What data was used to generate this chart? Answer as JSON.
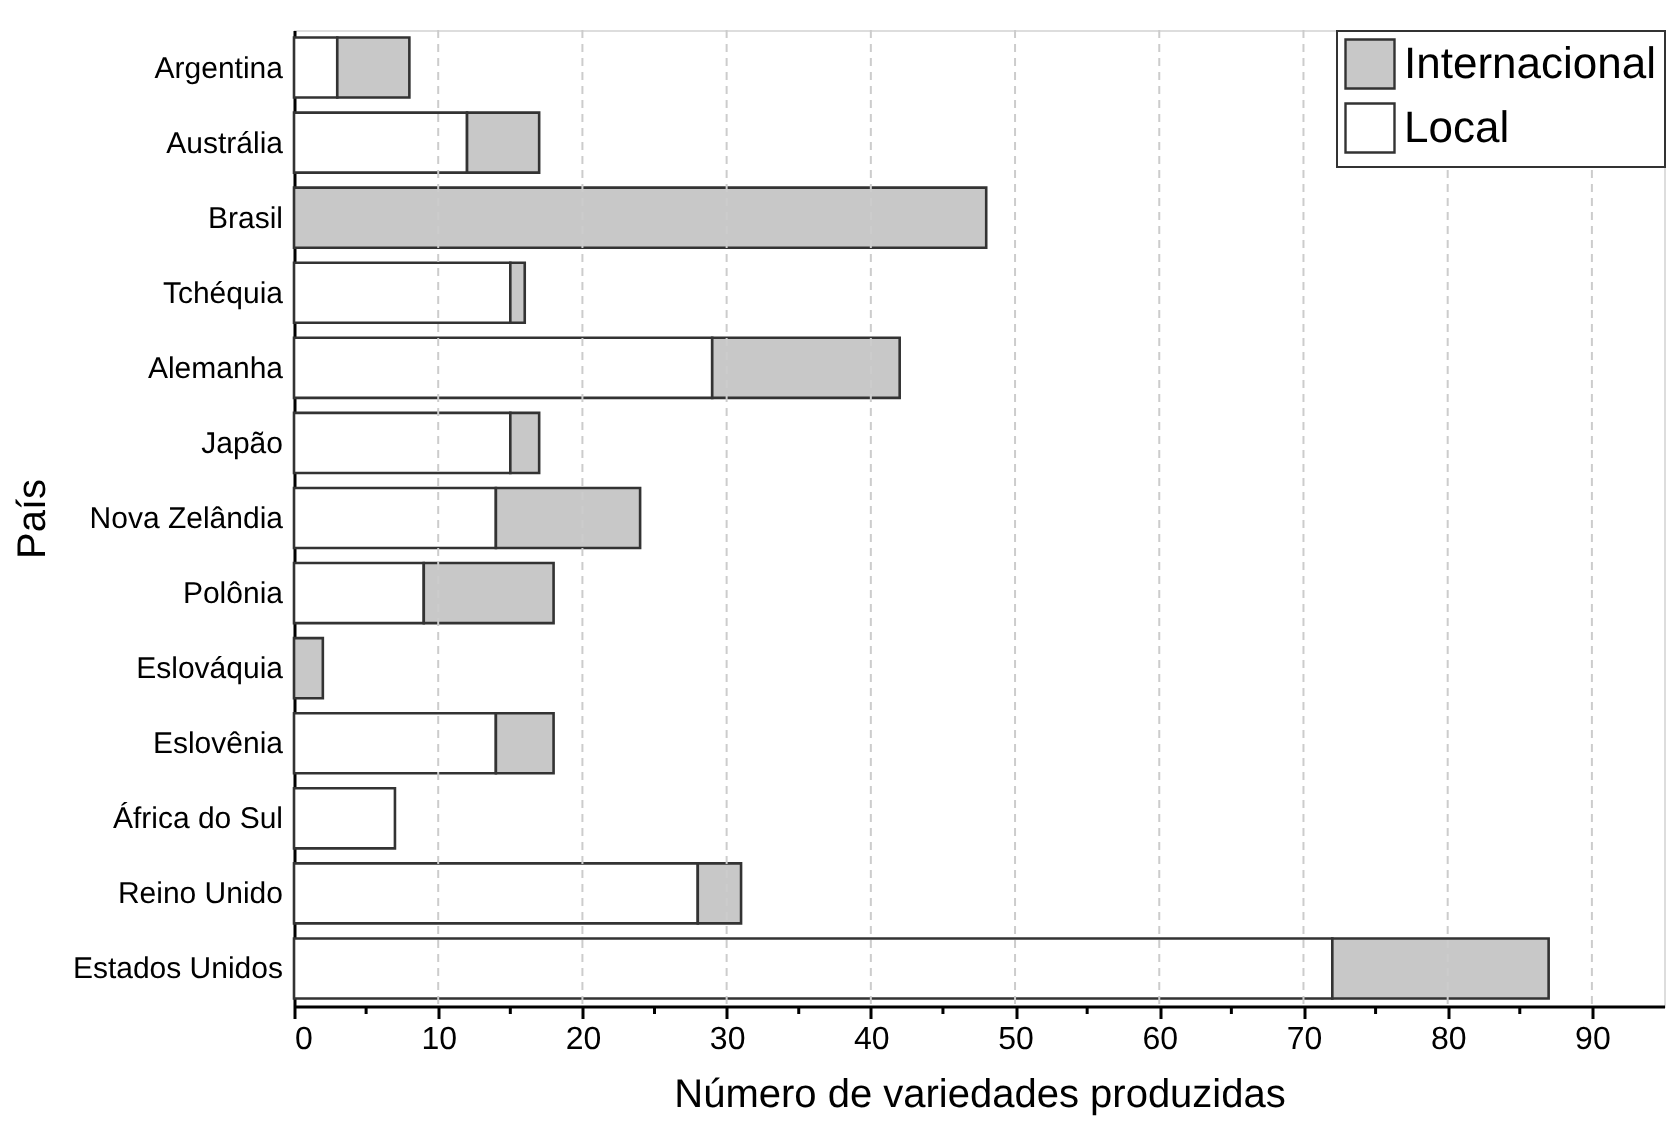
{
  "chart_data": {
    "type": "bar",
    "orientation": "horizontal",
    "stacked": true,
    "xlabel": "Número de variedades produzidas",
    "ylabel": "País",
    "categories": [
      "Argentina",
      "Austrália",
      "Brasil",
      "Tchéquia",
      "Alemanha",
      "Japão",
      "Nova Zelândia",
      "Polônia",
      "Eslováquia",
      "Eslovênia",
      "África do Sul",
      "Reino Unido",
      "Estados Unidos"
    ],
    "series": [
      {
        "name": "Local",
        "color": "#ffffff",
        "values": [
          3,
          12,
          0,
          15,
          29,
          15,
          14,
          9,
          0,
          14,
          7,
          28,
          72
        ]
      },
      {
        "name": "Internacional",
        "color": "#c8c8c8",
        "values": [
          5,
          5,
          48,
          1,
          13,
          2,
          10,
          9,
          2,
          4,
          0,
          3,
          15
        ]
      }
    ],
    "xlim": [
      0,
      95
    ],
    "xticks": [
      0,
      {
        "value": 5,
        "label": null
      },
      10,
      {
        "value": 15,
        "label": null
      },
      20,
      {
        "value": 25,
        "label": null
      },
      30,
      {
        "value": 35,
        "label": null
      },
      40,
      {
        "value": 45,
        "label": null
      },
      50,
      {
        "value": 55,
        "label": null
      },
      60,
      {
        "value": 65,
        "label": null
      },
      70,
      {
        "value": 75,
        "label": null
      },
      80,
      {
        "value": 85,
        "label": null
      },
      90
    ],
    "grid": "x",
    "legend": "top right"
  }
}
